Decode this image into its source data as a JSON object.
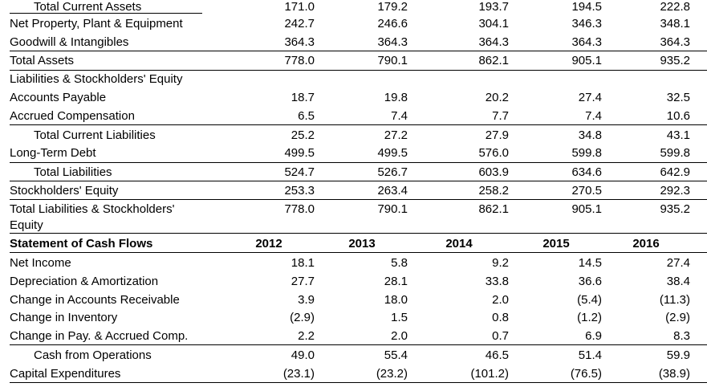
{
  "balance_sheet": {
    "rows": [
      {
        "label": "Total Current Assets",
        "indent": true,
        "values": [
          "171.0",
          "179.2",
          "193.7",
          "194.5",
          "222.8"
        ]
      },
      {
        "label": "Net Property, Plant & Equipment",
        "indent": false,
        "values": [
          "242.7",
          "246.6",
          "304.1",
          "346.3",
          "348.1"
        ]
      },
      {
        "label": "Goodwill & Intangibles",
        "indent": false,
        "values": [
          "364.3",
          "364.3",
          "364.3",
          "364.3",
          "364.3"
        ]
      },
      {
        "label": "Total Assets",
        "indent": false,
        "values": [
          "778.0",
          "790.1",
          "862.1",
          "905.1",
          "935.2"
        ]
      },
      {
        "label": "Liabilities & Stockholders' Equity",
        "indent": false,
        "values": [
          "",
          "",
          "",
          "",
          ""
        ]
      },
      {
        "label": "Accounts Payable",
        "indent": false,
        "values": [
          "18.7",
          "19.8",
          "20.2",
          "27.4",
          "32.5"
        ]
      },
      {
        "label": "Accrued Compensation",
        "indent": false,
        "values": [
          "6.5",
          "7.4",
          "7.7",
          "7.4",
          "10.6"
        ]
      },
      {
        "label": "Total Current Liabilities",
        "indent": true,
        "values": [
          "25.2",
          "27.2",
          "27.9",
          "34.8",
          "43.1"
        ]
      },
      {
        "label": "Long-Term Debt",
        "indent": false,
        "values": [
          "499.5",
          "499.5",
          "576.0",
          "599.8",
          "599.8"
        ]
      },
      {
        "label": "Total Liabilities",
        "indent": true,
        "values": [
          "524.7",
          "526.7",
          "603.9",
          "634.6",
          "642.9"
        ]
      },
      {
        "label": "Stockholders' Equity",
        "indent": false,
        "values": [
          "253.3",
          "263.4",
          "258.2",
          "270.5",
          "292.3"
        ]
      },
      {
        "label": "Total Liabilities & Stockholders'",
        "label2": "Equity",
        "indent": false,
        "values": [
          "778.0",
          "790.1",
          "862.1",
          "905.1",
          "935.2"
        ]
      }
    ]
  },
  "cash_flows": {
    "title": "Statement of Cash Flows",
    "years": [
      "2012",
      "2013",
      "2014",
      "2015",
      "2016"
    ],
    "rows": [
      {
        "label": "Net Income",
        "indent": false,
        "values": [
          "18.1",
          "5.8",
          "9.2",
          "14.5",
          "27.4"
        ]
      },
      {
        "label": "Depreciation & Amortization",
        "indent": false,
        "values": [
          "27.7",
          "28.1",
          "33.8",
          "36.6",
          "38.4"
        ]
      },
      {
        "label": "Change in Accounts Receivable",
        "indent": false,
        "values": [
          "3.9",
          "18.0",
          "2.0",
          "(5.4)",
          "(11.3)"
        ]
      },
      {
        "label": "Change in Inventory",
        "indent": false,
        "values": [
          "(2.9)",
          "1.5",
          "0.8",
          "(1.2)",
          "(2.9)"
        ]
      },
      {
        "label": "Change in Pay. & Accrued Comp.",
        "indent": false,
        "values": [
          "2.2",
          "2.0",
          "0.7",
          "6.9",
          "8.3"
        ]
      },
      {
        "label": "Cash from Operations",
        "indent": true,
        "values": [
          "49.0",
          "55.4",
          "46.5",
          "51.4",
          "59.9"
        ]
      },
      {
        "label": "Capital Expenditures",
        "indent": false,
        "values": [
          "(23.1)",
          "(23.2)",
          "(101.2)",
          "(76.5)",
          "(38.9)"
        ]
      }
    ]
  }
}
